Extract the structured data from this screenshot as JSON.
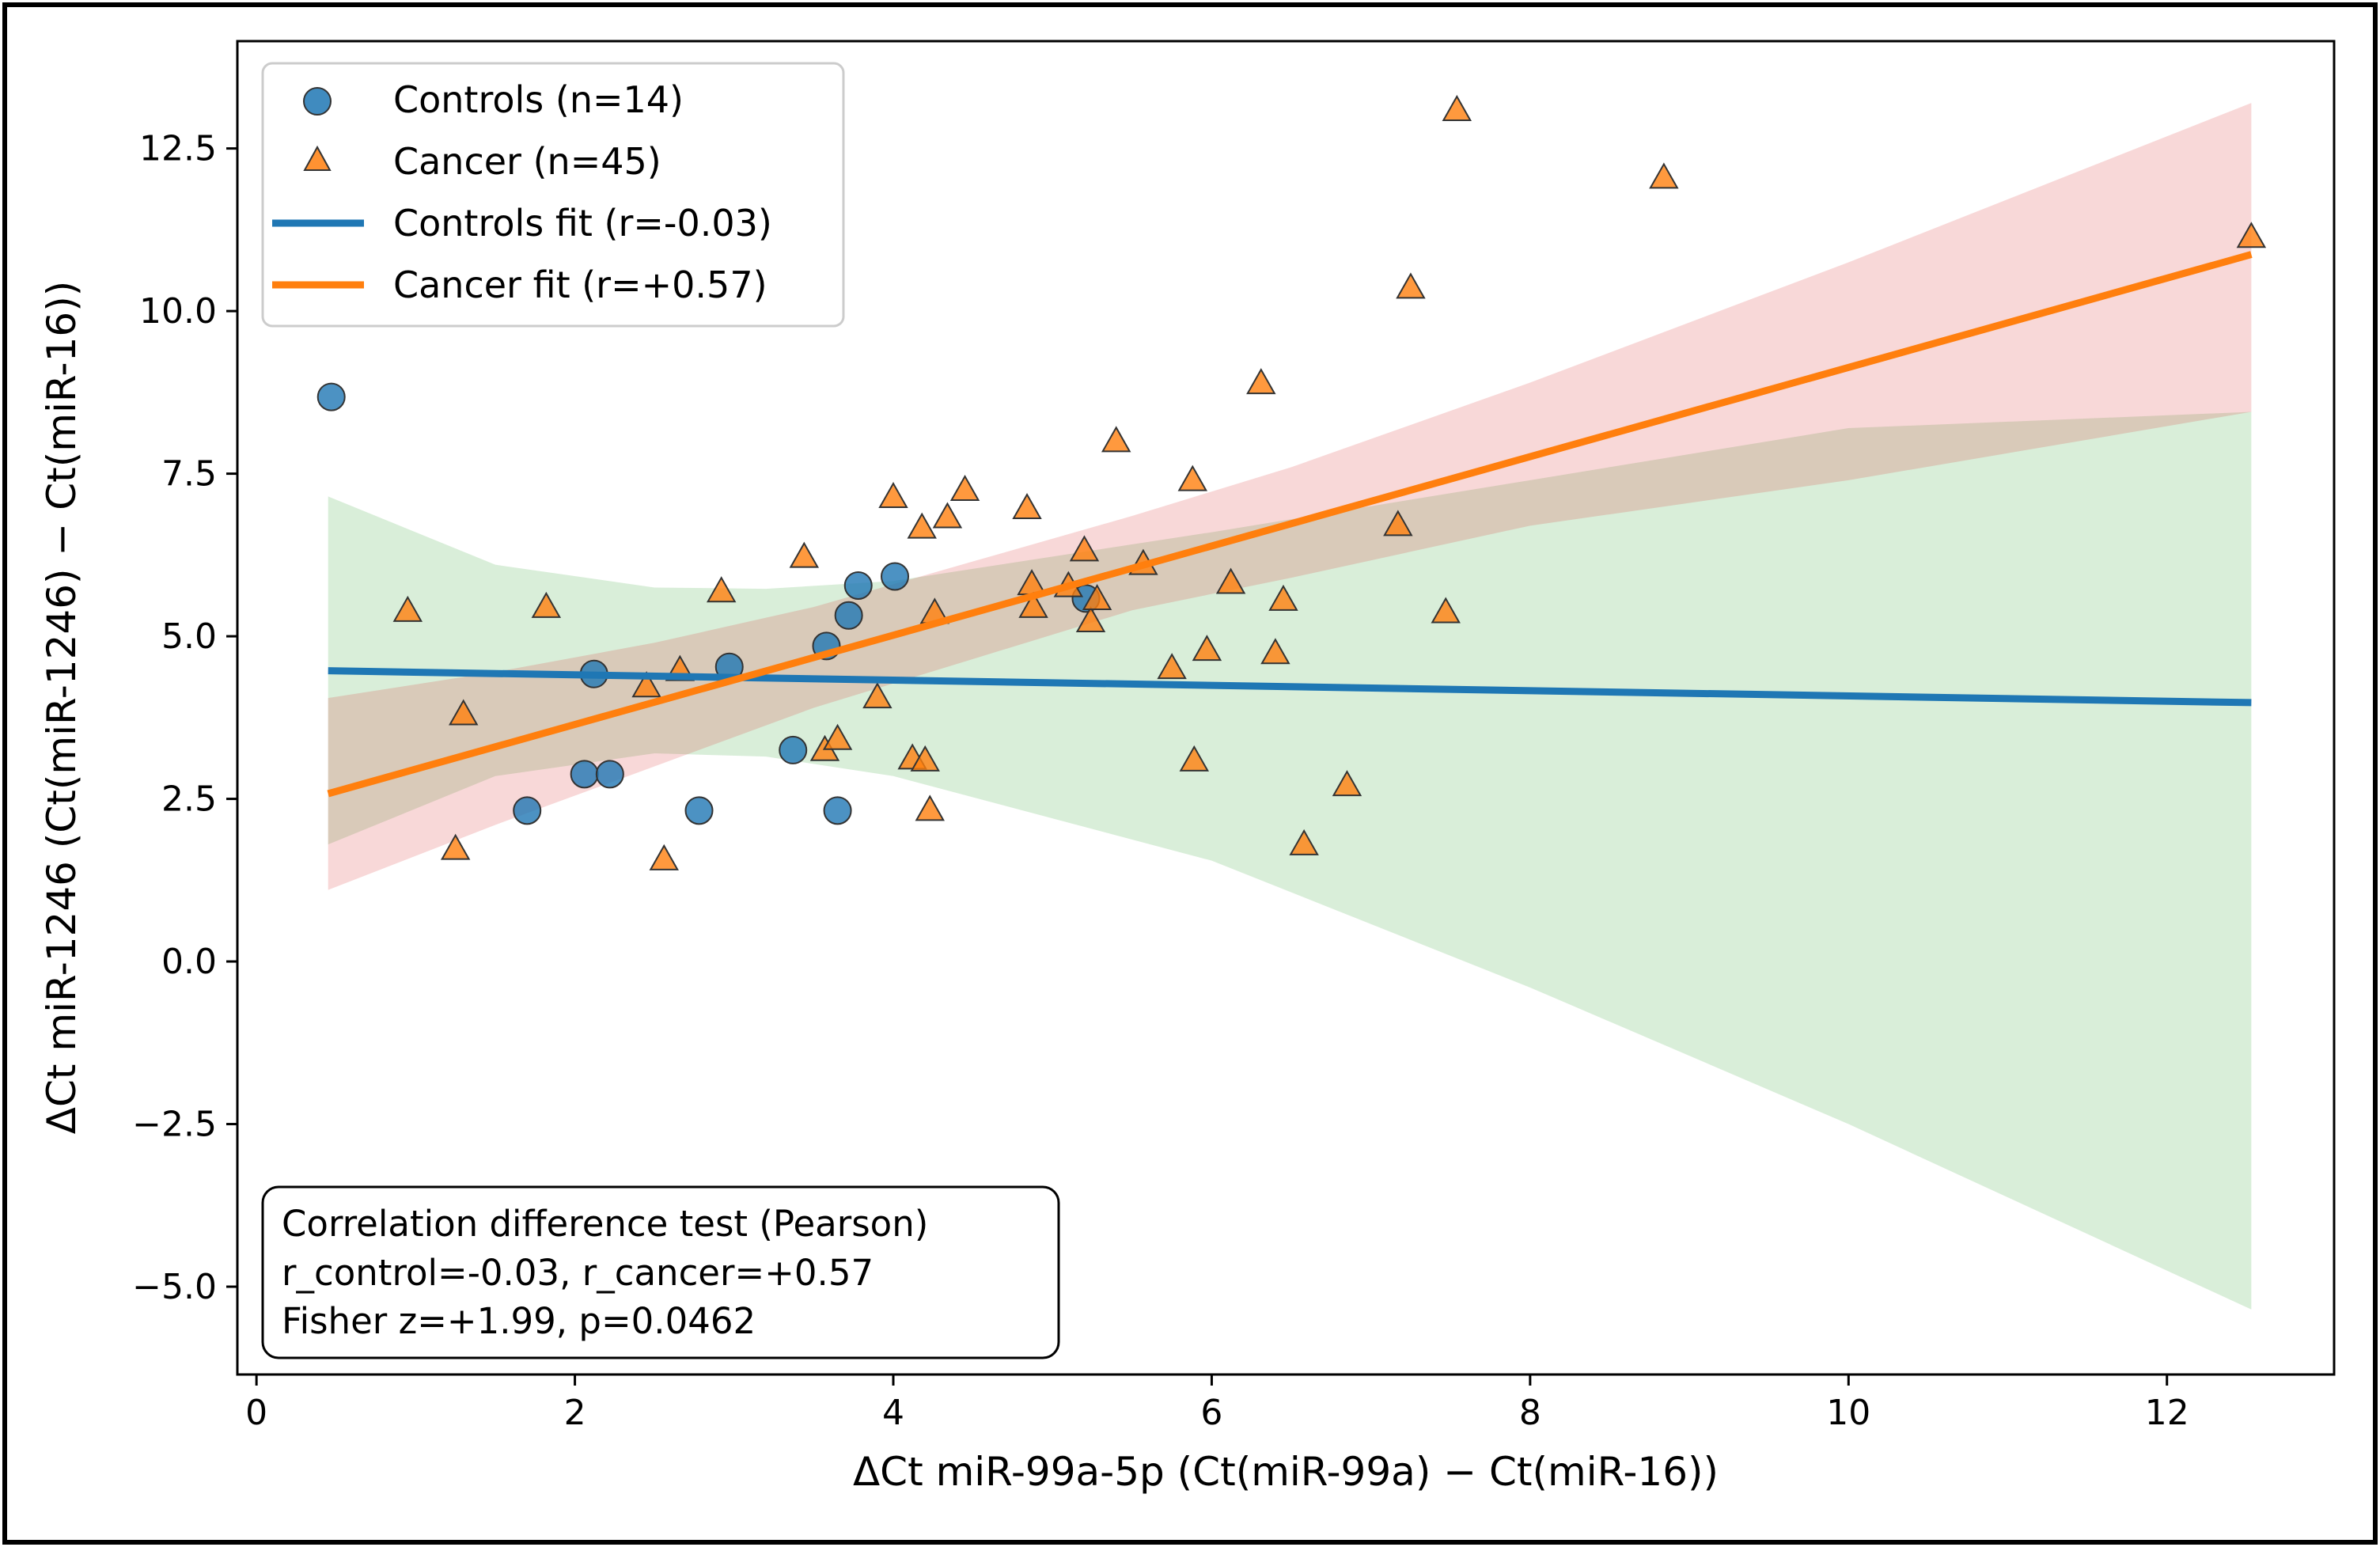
{
  "chart_data": {
    "type": "scatter",
    "title": "",
    "xlabel": "ΔCt miR-99a-5p (Ct(miR-99a) − Ct(miR-16))",
    "ylabel": "ΔCt miR-1246 (Ct(miR-1246) − Ct(miR-16))",
    "xlim": [
      -0.12,
      13.05
    ],
    "ylim": [
      -6.35,
      14.15
    ],
    "grid": false,
    "legend_position": "top-left",
    "x_ticks": [
      0,
      2,
      4,
      6,
      8,
      10,
      12
    ],
    "x_tick_labels": [
      "0",
      "2",
      "4",
      "6",
      "8",
      "10",
      "12"
    ],
    "y_ticks": [
      12.5,
      10.0,
      7.5,
      5.0,
      2.5,
      0.0,
      -2.5,
      -5.0
    ],
    "y_tick_labels": [
      "12.5",
      "10.0",
      "7.5",
      "5.0",
      "2.5",
      "0.0",
      "−2.5",
      "−5.0"
    ],
    "colors": {
      "controls": "#1f77b4",
      "cancer": "#ff7f0e",
      "controls_band": "#2ca02c",
      "cancer_band": "#d62728"
    },
    "series": [
      {
        "name": "Controls (n=14)",
        "kind": "scatter",
        "marker": "circle",
        "points": [
          [
            0.47,
            8.68
          ],
          [
            1.7,
            2.32
          ],
          [
            2.06,
            2.88
          ],
          [
            2.12,
            4.42
          ],
          [
            2.22,
            2.88
          ],
          [
            2.78,
            2.32
          ],
          [
            2.97,
            4.53
          ],
          [
            3.37,
            3.25
          ],
          [
            3.58,
            4.85
          ],
          [
            3.65,
            2.32
          ],
          [
            3.72,
            5.32
          ],
          [
            3.78,
            5.78
          ],
          [
            4.01,
            5.92
          ],
          [
            5.21,
            5.58
          ]
        ]
      },
      {
        "name": "Cancer (n=45)",
        "kind": "scatter",
        "marker": "triangle",
        "points": [
          [
            0.95,
            5.38
          ],
          [
            1.25,
            1.72
          ],
          [
            1.3,
            3.79
          ],
          [
            1.82,
            5.44
          ],
          [
            2.45,
            4.22
          ],
          [
            2.56,
            1.56
          ],
          [
            2.66,
            4.47
          ],
          [
            2.92,
            5.68
          ],
          [
            3.44,
            6.21
          ],
          [
            3.57,
            3.24
          ],
          [
            3.65,
            3.41
          ],
          [
            3.9,
            4.05
          ],
          [
            4.0,
            7.13
          ],
          [
            4.12,
            3.11
          ],
          [
            4.18,
            6.66
          ],
          [
            4.2,
            3.08
          ],
          [
            4.23,
            2.32
          ],
          [
            4.26,
            5.35
          ],
          [
            4.34,
            6.82
          ],
          [
            4.45,
            7.24
          ],
          [
            4.84,
            6.96
          ],
          [
            4.87,
            5.79
          ],
          [
            4.88,
            5.44
          ],
          [
            5.1,
            5.76
          ],
          [
            5.2,
            6.31
          ],
          [
            5.24,
            5.22
          ],
          [
            5.28,
            5.56
          ],
          [
            5.4,
            7.99
          ],
          [
            5.57,
            6.1
          ],
          [
            5.75,
            4.5
          ],
          [
            5.88,
            7.39
          ],
          [
            5.89,
            3.08
          ],
          [
            5.97,
            4.78
          ],
          [
            6.12,
            5.81
          ],
          [
            6.31,
            8.88
          ],
          [
            6.4,
            4.73
          ],
          [
            6.45,
            5.55
          ],
          [
            6.58,
            1.79
          ],
          [
            6.85,
            2.7
          ],
          [
            7.17,
            6.7
          ],
          [
            7.25,
            10.35
          ],
          [
            7.47,
            5.36
          ],
          [
            7.54,
            13.08
          ],
          [
            8.84,
            12.04
          ],
          [
            12.53,
            11.13
          ]
        ]
      },
      {
        "name": "Controls fit (r=-0.03)",
        "kind": "line",
        "x": [
          0.45,
          12.53
        ],
        "y": [
          4.47,
          3.98
        ],
        "band_x": [
          0.45,
          1.5,
          2.5,
          3.2,
          4.0,
          6.0,
          8.0,
          10.0,
          12.53
        ],
        "band_upper": [
          7.15,
          6.1,
          5.75,
          5.73,
          5.85,
          6.6,
          7.4,
          8.2,
          8.45
        ],
        "band_lower": [
          1.8,
          2.85,
          3.2,
          3.15,
          2.85,
          1.55,
          -0.4,
          -2.5,
          -5.35
        ]
      },
      {
        "name": "Cancer fit (r=+0.57)",
        "kind": "line",
        "x": [
          0.45,
          12.53
        ],
        "y": [
          2.58,
          10.87
        ],
        "band_x": [
          0.45,
          1.5,
          2.5,
          3.5,
          4.5,
          5.5,
          6.5,
          8.0,
          10.0,
          12.53
        ],
        "band_upper": [
          4.05,
          4.45,
          4.9,
          5.45,
          6.15,
          6.85,
          7.6,
          8.9,
          10.75,
          13.2
        ],
        "band_lower": [
          1.1,
          2.1,
          3.0,
          3.9,
          4.65,
          5.4,
          5.9,
          6.7,
          7.4,
          8.45
        ]
      }
    ],
    "annotation": [
      "Correlation difference test (Pearson)",
      "r_control=-0.03, r_cancer=+0.57",
      "Fisher z=+1.99, p=0.0462"
    ]
  }
}
